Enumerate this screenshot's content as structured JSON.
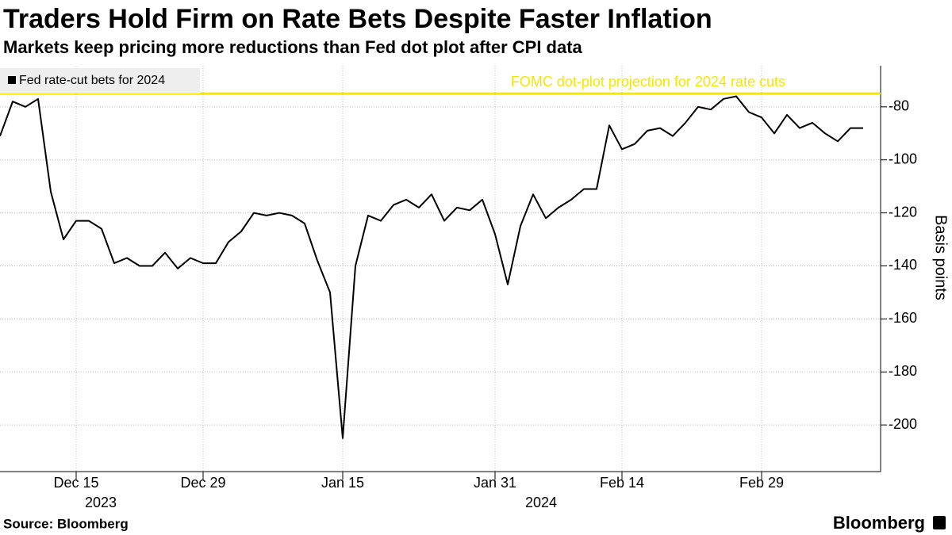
{
  "chart_data": {
    "type": "line",
    "title": "Traders Hold Firm on Rate Bets Despite Faster Inflation",
    "subtitle": "Markets keep pricing more reductions than Fed dot plot after CPI data",
    "y_axis_label": "Basis points",
    "source": "Source: Bloomberg",
    "brand": "Bloomberg",
    "categories": [
      "2023-12-07",
      "2023-12-08",
      "2023-12-11",
      "2023-12-12",
      "2023-12-13",
      "2023-12-14",
      "2023-12-15",
      "2023-12-18",
      "2023-12-19",
      "2023-12-20",
      "2023-12-21",
      "2023-12-22",
      "2023-12-25",
      "2023-12-26",
      "2023-12-27",
      "2023-12-28",
      "2023-12-29",
      "2024-01-01",
      "2024-01-02",
      "2024-01-03",
      "2024-01-04",
      "2024-01-05",
      "2024-01-08",
      "2024-01-09",
      "2024-01-10",
      "2024-01-11",
      "2024-01-12",
      "2024-01-15",
      "2024-01-16",
      "2024-01-17",
      "2024-01-18",
      "2024-01-19",
      "2024-01-22",
      "2024-01-23",
      "2024-01-24",
      "2024-01-25",
      "2024-01-26",
      "2024-01-29",
      "2024-01-30",
      "2024-01-31",
      "2024-02-01",
      "2024-02-02",
      "2024-02-05",
      "2024-02-06",
      "2024-02-07",
      "2024-02-08",
      "2024-02-09",
      "2024-02-12",
      "2024-02-13",
      "2024-02-14",
      "2024-02-15",
      "2024-02-16",
      "2024-02-19",
      "2024-02-20",
      "2024-02-21",
      "2024-02-22",
      "2024-02-23",
      "2024-02-26",
      "2024-02-27",
      "2024-02-28",
      "2024-02-29",
      "2024-03-01",
      "2024-03-04",
      "2024-03-05",
      "2024-03-06",
      "2024-03-07",
      "2024-03-08",
      "2024-03-11",
      "2024-03-12"
    ],
    "series": [
      {
        "name": "Fed rate-cut bets for 2024",
        "color": "#000000",
        "values": [
          -91,
          -78,
          -80,
          -77,
          -112,
          -130,
          -123,
          -123,
          -126,
          -139,
          -137,
          -140,
          -140,
          -135,
          -141,
          -137,
          -139,
          -139,
          -131,
          -127,
          -120,
          -121,
          -120,
          -121,
          -124,
          -138,
          -150,
          -205,
          -140,
          -121,
          -123,
          -117,
          -115,
          -118,
          -113,
          -123,
          -118,
          -119,
          -115,
          -128,
          -147,
          -125,
          -113,
          -122,
          -118,
          -115,
          -111,
          -111,
          -87,
          -96,
          -94,
          -89,
          -88,
          -91,
          -86,
          -80,
          -81,
          -77,
          -76,
          -82,
          -84,
          -90,
          -83,
          -88,
          -86,
          -90,
          -93,
          -88,
          -88
        ]
      }
    ],
    "reference_line": {
      "value": -75,
      "label": "FOMC dot-plot projection for 2024 rate cuts",
      "color": "#f5e600"
    },
    "xticks": [
      {
        "value": "2023-12-15",
        "label": "Dec 15"
      },
      {
        "value": "2023-12-29",
        "label": "Dec 29"
      },
      {
        "value": "2024-01-15",
        "label": "Jan 15"
      },
      {
        "value": "2024-01-31",
        "label": "Jan 31"
      },
      {
        "value": "2024-02-14",
        "label": "Feb 14"
      },
      {
        "value": "2024-02-29",
        "label": "Feb 29"
      }
    ],
    "year_labels": [
      "2023",
      "2024"
    ],
    "ylim": [
      -217.6,
      -64.5
    ],
    "yticks": [
      -80,
      -100,
      -120,
      -140,
      -160,
      -180,
      -200
    ],
    "grid": true,
    "legend": "top-left"
  }
}
